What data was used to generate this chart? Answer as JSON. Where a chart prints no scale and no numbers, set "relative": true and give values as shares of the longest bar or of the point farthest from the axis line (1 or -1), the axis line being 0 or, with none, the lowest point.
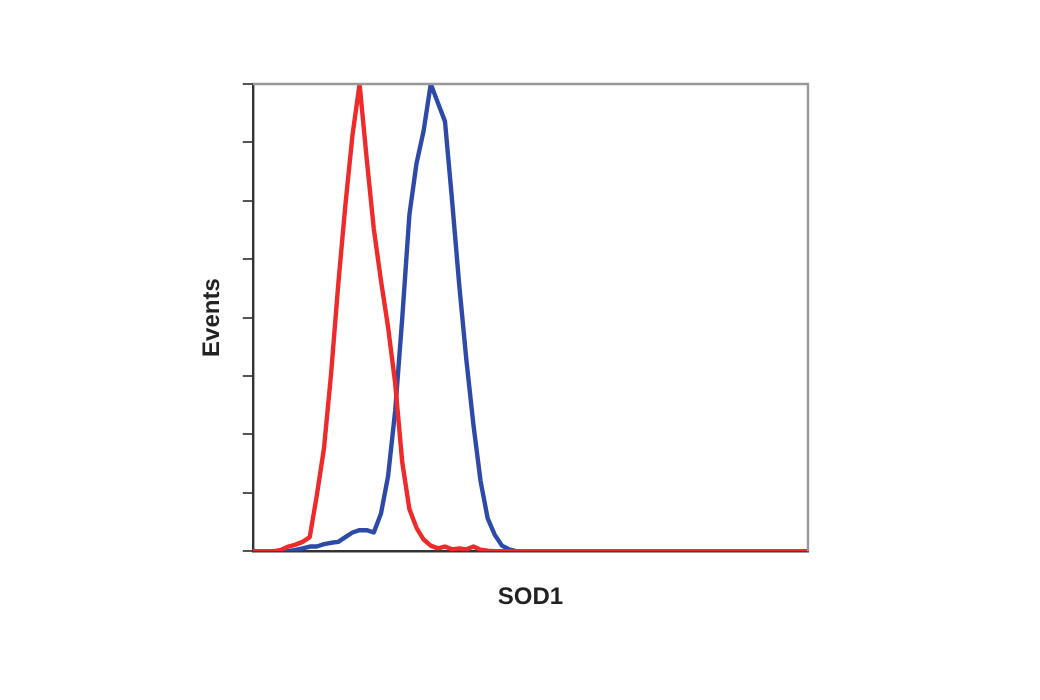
{
  "chart_data": {
    "type": "line",
    "relative": true,
    "xlabel": "SOD1",
    "ylabel": "Events",
    "tick_labels": false,
    "grid": false,
    "legend": false,
    "marker": "none",
    "line_style": "solid",
    "categories": [
      null,
      null,
      null,
      null,
      null,
      null,
      null,
      null,
      null,
      null,
      null,
      null,
      null,
      null,
      null,
      null,
      null,
      null,
      null,
      null,
      null,
      null,
      null,
      null,
      null,
      null,
      null,
      null,
      null,
      null,
      null,
      null,
      null,
      null,
      null,
      null,
      null,
      null,
      null,
      null,
      null,
      null,
      null,
      null,
      null,
      null,
      null,
      null,
      null,
      null,
      null,
      null,
      null,
      null,
      null,
      null,
      null,
      null,
      null,
      null,
      null,
      null,
      null,
      null,
      null,
      null,
      null,
      null,
      null,
      null,
      null,
      null,
      null,
      null,
      null,
      null,
      null,
      null,
      null
    ],
    "series": [
      {
        "color": "#ee2a2a",
        "values": [
          0,
          0,
          0,
          0,
          0.003,
          0.01,
          0.014,
          0.02,
          0.03,
          0.12,
          0.22,
          0.38,
          0.57,
          0.74,
          0.89,
          1.0,
          0.84,
          0.69,
          0.58,
          0.48,
          0.36,
          0.19,
          0.09,
          0.05,
          0.025,
          0.012,
          0.006,
          0.01,
          0.004,
          0.006,
          0.004,
          0.01,
          0.003,
          0.001,
          0,
          0,
          0,
          0,
          0,
          0,
          0,
          0,
          0,
          0,
          0,
          0,
          0,
          0,
          0,
          0,
          0,
          0,
          0,
          0,
          0,
          0,
          0,
          0,
          0,
          0,
          0,
          0,
          0,
          0,
          0,
          0,
          0,
          0,
          0,
          0,
          0,
          0,
          0,
          0,
          0,
          0,
          0,
          0,
          0
        ]
      },
      {
        "color": "#2e4aa8",
        "values": [
          null,
          null,
          null,
          null,
          0,
          0,
          0.003,
          0.006,
          0.01,
          0.01,
          0.015,
          0.018,
          0.02,
          0.03,
          0.04,
          0.045,
          0.045,
          0.04,
          0.08,
          0.16,
          0.3,
          0.5,
          0.72,
          0.83,
          0.9,
          1.0,
          0.96,
          0.92,
          0.75,
          0.57,
          0.41,
          0.27,
          0.15,
          0.07,
          0.035,
          0.012,
          0.004,
          0,
          0,
          null,
          null,
          null,
          null,
          null,
          null,
          null,
          null,
          null,
          null,
          null,
          null,
          null,
          null,
          null,
          null,
          null,
          null,
          null,
          null,
          null,
          null,
          null,
          null,
          null,
          null,
          null,
          null,
          null,
          null,
          null,
          null,
          null,
          null,
          null,
          null,
          null,
          null,
          null,
          null
        ]
      }
    ]
  }
}
